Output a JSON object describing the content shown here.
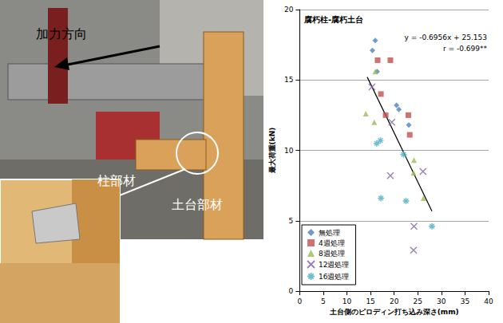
{
  "chart_data": {
    "type": "scatter",
    "title": "腐朽柱-腐朽土台",
    "x_label": "土台側のピロディン打ち込み深さ(mm)",
    "y_label": "最大荷重(kN)",
    "xlim": [
      0,
      40
    ],
    "xticks": [
      0,
      5,
      10,
      15,
      20,
      25,
      30,
      35,
      40
    ],
    "ylim": [
      0,
      20
    ],
    "yticks": [
      0,
      5,
      10,
      15,
      20
    ],
    "grid": true,
    "legend": "bottom-left",
    "series": [
      {
        "name": "無処理",
        "color": "#4F81BD",
        "marker": "diamond",
        "x": [
          16.0,
          15.4,
          16.4,
          20.5,
          21.0,
          23.1
        ],
        "values": [
          17.8,
          17.1,
          15.6,
          13.2,
          12.9,
          11.8
        ]
      },
      {
        "name": "4週処理",
        "color": "#C0504D",
        "marker": "square",
        "x": [
          16.5,
          19.2,
          17.2,
          18.2,
          23.0,
          23.3
        ],
        "values": [
          16.4,
          16.4,
          14.0,
          12.5,
          12.5,
          11.1
        ]
      },
      {
        "name": "8週処理",
        "color": "#9BBB59",
        "marker": "triangle",
        "x": [
          16.0,
          14.0,
          15.8,
          24.2,
          24.1,
          26.2
        ],
        "values": [
          15.6,
          12.6,
          12.0,
          9.3,
          8.4,
          6.6
        ]
      },
      {
        "name": "12週処理",
        "color": "#8064A2",
        "marker": "x",
        "x": [
          15.3,
          19.5,
          19.2,
          26.1,
          24.2,
          24.1
        ],
        "values": [
          14.5,
          12.0,
          8.2,
          8.5,
          4.6,
          2.9
        ]
      },
      {
        "name": "16週処理",
        "color": "#4BACC6",
        "marker": "asterisk",
        "x": [
          16.3,
          17.1,
          22.0,
          17.2,
          22.5,
          28.0
        ],
        "values": [
          10.5,
          10.7,
          9.7,
          6.6,
          6.4,
          4.6
        ]
      }
    ],
    "trendline": {
      "slope": -0.6956,
      "intercept": 25.153,
      "x_range": [
        14.3,
        28.0
      ],
      "color": "#000000"
    },
    "annotations": [
      "y = -0.6956x + 25.153",
      "r = -0.699**"
    ]
  },
  "photo": {
    "labels": [
      "加力方向",
      "柱部材",
      "土台部材"
    ]
  }
}
